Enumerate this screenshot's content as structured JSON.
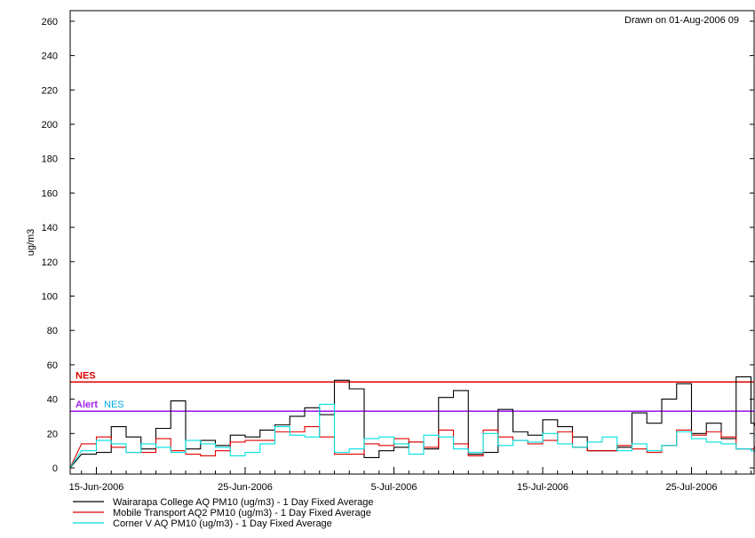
{
  "chart_data": {
    "type": "line",
    "step": true,
    "drawn_note": "Drawn on 01-Aug-2006 09",
    "ylabel": "ug/m3",
    "ylim": [
      0,
      270
    ],
    "yticks": [
      0,
      20,
      40,
      60,
      80,
      100,
      120,
      140,
      160,
      180,
      200,
      220,
      240,
      260
    ],
    "x_start": "2006-06-14",
    "x_end": "2006-07-31",
    "xticks": [
      {
        "date": "2006-06-15",
        "label": "15-Jun-2006"
      },
      {
        "date": "2006-06-25",
        "label": "25-Jun-2006"
      },
      {
        "date": "2006-07-05",
        "label": "5-Jul-2006"
      },
      {
        "date": "2006-07-15",
        "label": "15-Jul-2006"
      },
      {
        "date": "2006-07-25",
        "label": "25-Jul-2006"
      }
    ],
    "reference_lines": [
      {
        "label": "NES",
        "value": 50,
        "color": "#e00000"
      },
      {
        "label": "Alert",
        "label2": "NES",
        "value": 33,
        "color": "#a020f0",
        "color2": "#00a8e8"
      }
    ],
    "series": [
      {
        "name": "Wairarapa College AQ PM10 (ug/m3)  - 1 Day Fixed Average",
        "color": "#000000",
        "values": [
          8,
          9,
          24,
          18,
          11,
          23,
          39,
          11,
          16,
          13,
          19,
          18,
          22,
          25,
          30,
          35,
          31,
          51,
          46,
          6,
          10,
          12,
          15,
          11,
          41,
          45,
          8,
          9,
          34,
          21,
          19,
          28,
          24,
          18,
          10,
          10,
          12,
          32,
          26,
          40,
          49,
          20,
          26,
          17,
          53,
          26,
          10
        ]
      },
      {
        "name": "Mobile Transport AQ2 PM10 (ug/m3)  - 1 Day Fixed Average",
        "color": "#e00000",
        "values": [
          14,
          18,
          12,
          9,
          9,
          17,
          10,
          8,
          7,
          10,
          15,
          16,
          16,
          21,
          21,
          24,
          18,
          8,
          8,
          14,
          13,
          17,
          15,
          12,
          22,
          14,
          7,
          22,
          18,
          16,
          14,
          16,
          21,
          12,
          10,
          10,
          13,
          11,
          9,
          13,
          22,
          19,
          21,
          18,
          11,
          11,
          26
        ]
      },
      {
        "name": "Corner V AQ PM10 (ug/m3)  - 1 Day Fixed Average",
        "color": "#00e0e0",
        "values": [
          10,
          16,
          14,
          9,
          14,
          12,
          9,
          16,
          14,
          12,
          7,
          9,
          14,
          24,
          19,
          18,
          37,
          9,
          11,
          17,
          18,
          14,
          8,
          19,
          18,
          11,
          9,
          20,
          13,
          16,
          15,
          20,
          14,
          12,
          15,
          18,
          10,
          14,
          10,
          13,
          21,
          17,
          15,
          14,
          11,
          10,
          19
        ]
      }
    ]
  }
}
